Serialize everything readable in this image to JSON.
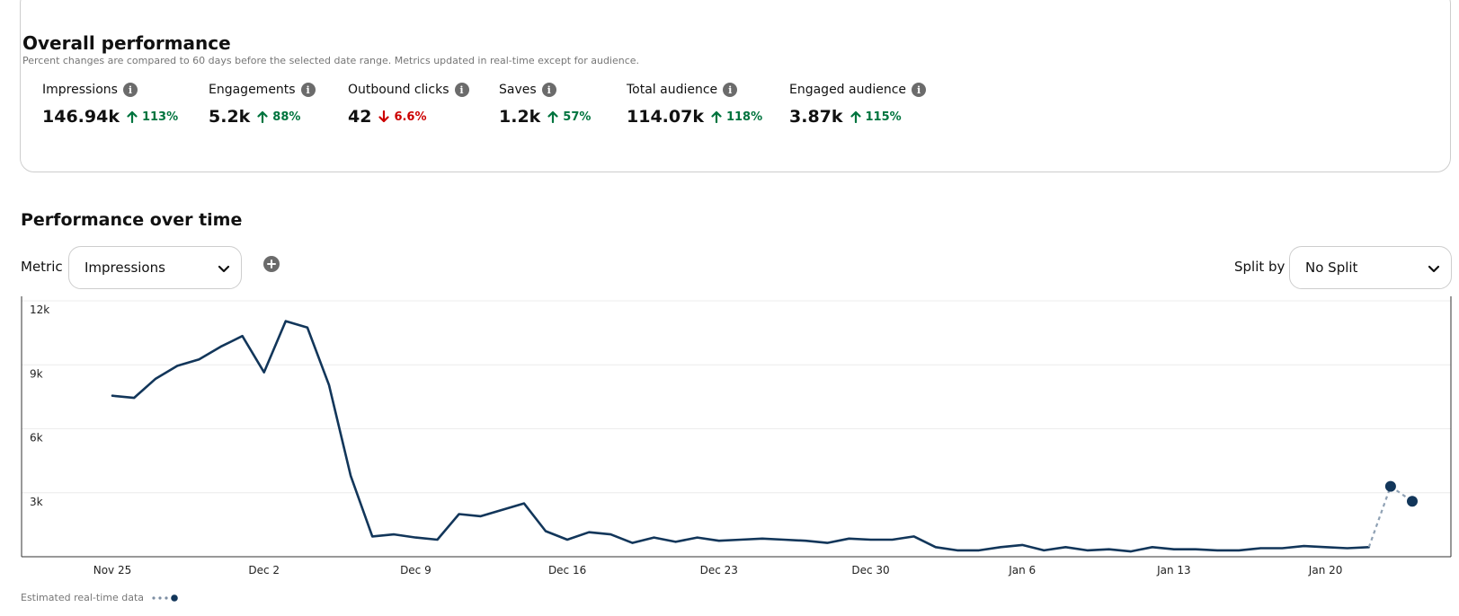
{
  "overall": {
    "title": "Overall performance",
    "subtitle": "Percent changes are compared to 60 days before the selected date range. Metrics updated in real-time except for audience.",
    "metrics": [
      {
        "label": "Impressions",
        "value": "146.94k",
        "direction": "up",
        "change": "113%"
      },
      {
        "label": "Engagements",
        "value": "5.2k",
        "direction": "up",
        "change": "88%"
      },
      {
        "label": "Outbound clicks",
        "value": "42",
        "direction": "down",
        "change": "6.6%"
      },
      {
        "label": "Saves",
        "value": "1.2k",
        "direction": "up",
        "change": "57%"
      },
      {
        "label": "Total audience",
        "value": "114.07k",
        "direction": "up",
        "change": "118%"
      },
      {
        "label": "Engaged audience",
        "value": "3.87k",
        "direction": "up",
        "change": "115%"
      }
    ]
  },
  "performance": {
    "title": "Performance over time",
    "metric_label": "Metric",
    "metric_value": "Impressions",
    "split_label": "Split by",
    "split_value": "No Split"
  },
  "icons": {
    "info": "info-icon",
    "up": "arrow-up-icon",
    "down": "arrow-down-icon",
    "add": "plus-circle-icon",
    "chevron": "chevron-down-icon"
  },
  "colors": {
    "line": "#12365a",
    "positive": "#00743e",
    "negative": "#cc0000"
  },
  "legend": {
    "label": "Estimated real-time data"
  },
  "chart_data": {
    "type": "line",
    "title": "",
    "xlabel": "",
    "ylabel": "",
    "ylim": [
      0,
      12000
    ],
    "y_ticks": [
      "12k",
      "9k",
      "6k",
      "3k"
    ],
    "y_tick_values": [
      12000,
      9000,
      6000,
      3000
    ],
    "x_ticks": [
      "Nov 25",
      "Dec 2",
      "Dec 9",
      "Dec 16",
      "Dec 23",
      "Dec 30",
      "Jan 6",
      "Jan 13",
      "Jan 20"
    ],
    "x_tick_dates": [
      "2023-11-25",
      "2023-12-02",
      "2023-12-09",
      "2023-12-16",
      "2023-12-23",
      "2023-12-30",
      "2024-01-06",
      "2024-01-13",
      "2024-01-20"
    ],
    "grid": true,
    "series": [
      {
        "x": [
          "2023-11-25",
          "2023-11-26",
          "2023-11-27",
          "2023-11-28",
          "2023-11-29",
          "2023-11-30",
          "2023-12-01",
          "2023-12-02",
          "2023-12-03",
          "2023-12-04",
          "2023-12-05",
          "2023-12-06",
          "2023-12-07",
          "2023-12-08",
          "2023-12-09",
          "2023-12-10",
          "2023-12-11",
          "2023-12-12",
          "2023-12-13",
          "2023-12-14",
          "2023-12-15",
          "2023-12-16",
          "2023-12-17",
          "2023-12-18",
          "2023-12-19",
          "2023-12-20",
          "2023-12-21",
          "2023-12-22",
          "2023-12-23",
          "2023-12-24",
          "2023-12-25",
          "2023-12-26",
          "2023-12-27",
          "2023-12-28",
          "2023-12-29",
          "2023-12-30",
          "2023-12-31",
          "2024-01-01",
          "2024-01-02",
          "2024-01-03",
          "2024-01-04",
          "2024-01-05",
          "2024-01-06",
          "2024-01-07",
          "2024-01-08",
          "2024-01-09",
          "2024-01-10",
          "2024-01-11",
          "2024-01-12",
          "2024-01-13",
          "2024-01-14",
          "2024-01-15",
          "2024-01-16",
          "2024-01-17",
          "2024-01-18",
          "2024-01-19",
          "2024-01-20",
          "2024-01-21",
          "2024-01-22"
        ],
        "values": [
          7550,
          7450,
          8350,
          8950,
          9250,
          9850,
          10350,
          8650,
          11050,
          10750,
          8050,
          3800,
          950,
          1050,
          900,
          800,
          2000,
          1900,
          2200,
          2500,
          1200,
          800,
          1150,
          1050,
          650,
          900,
          700,
          900,
          750,
          800,
          850,
          800,
          750,
          650,
          850,
          800,
          800,
          950,
          450,
          300,
          300,
          450,
          550,
          300,
          450,
          300,
          350,
          250,
          450,
          350,
          350,
          300,
          300,
          400,
          400,
          500,
          450,
          400,
          450
        ]
      }
    ],
    "estimated": {
      "x": [
        "2024-01-22",
        "2024-01-23",
        "2024-01-24"
      ],
      "values": [
        450,
        3300,
        2600
      ]
    }
  }
}
